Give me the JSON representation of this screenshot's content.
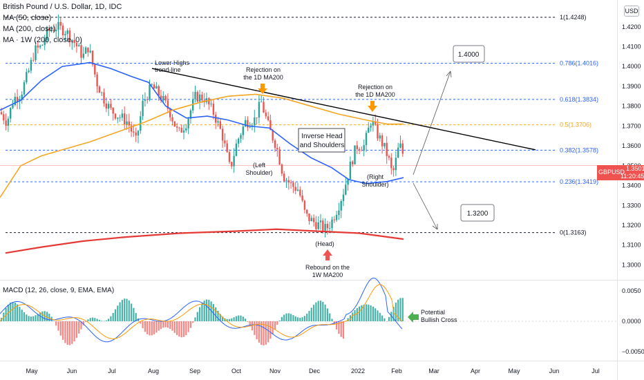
{
  "header": {
    "symbol_title": "British Pound / U.S. Dollar, 1D, IDC",
    "ma50_label": "MA (50, close)",
    "ma200_label": "MA (200, close)",
    "ma1w_label": "MA · 1W (200, close, 0)"
  },
  "currency_badge": "USD",
  "price_tag": {
    "symbol": "GBPUSD",
    "price": "1.3501",
    "countdown": "11:20:45"
  },
  "macd_header": "MACD (12, 26, close, 9, EMA, EMA)",
  "colors": {
    "up": "#26a69a",
    "down": "#ef5350",
    "ma50": "#2962ff",
    "ma200": "#f5a623",
    "ma1w": "#e53935",
    "fib": "#2962ff",
    "macd": "#2962ff",
    "signal": "#ff9800",
    "arrow_orange": "#ff9800",
    "arrow_red": "#ef5350",
    "arrow_green": "#4caf50"
  },
  "chart_data": [
    {
      "type": "candlestick",
      "title": "British Pound / U.S. Dollar, 1D, IDC",
      "ylim": [
        1.2925,
        1.4335
      ],
      "y_ticks": [
        "1.4200",
        "1.4100",
        "1.4000",
        "1.3900",
        "1.3800",
        "1.3700",
        "1.3600",
        "1.3500",
        "1.3400",
        "1.3300",
        "1.3200",
        "1.3100",
        "1.3000"
      ],
      "x_ticks": [
        "May",
        "Jun",
        "Jul",
        "Aug",
        "Sep",
        "Oct",
        "Nov",
        "Dec",
        "2022",
        "Feb",
        "Mar",
        "Apr",
        "May",
        "Jun",
        "Jul"
      ],
      "ohlc_monthly_approx": [
        {
          "month": "May",
          "open": 1.383,
          "high": 1.424,
          "low": 1.38,
          "close": 1.416
        },
        {
          "month": "Jun",
          "open": 1.416,
          "high": 1.425,
          "low": 1.378,
          "close": 1.383
        },
        {
          "month": "Jul",
          "open": 1.383,
          "high": 1.398,
          "low": 1.357,
          "close": 1.39
        },
        {
          "month": "Aug",
          "open": 1.39,
          "high": 1.395,
          "low": 1.361,
          "close": 1.376
        },
        {
          "month": "Sep",
          "open": 1.376,
          "high": 1.391,
          "low": 1.341,
          "close": 1.347
        },
        {
          "month": "Oct",
          "open": 1.347,
          "high": 1.383,
          "low": 1.345,
          "close": 1.368
        },
        {
          "month": "Nov",
          "open": 1.368,
          "high": 1.37,
          "low": 1.317,
          "close": 1.33
        },
        {
          "month": "Dec",
          "open": 1.33,
          "high": 1.355,
          "low": 1.316,
          "close": 1.353
        },
        {
          "month": "Jan",
          "open": 1.353,
          "high": 1.375,
          "low": 1.336,
          "close": 1.346
        },
        {
          "month": "Feb",
          "open": 1.346,
          "high": 1.363,
          "low": 1.343,
          "close": 1.35
        }
      ],
      "series": [
        {
          "name": "MA (50, close)",
          "color": "#2962ff"
        },
        {
          "name": "MA (200, close)",
          "color": "#f5a623"
        },
        {
          "name": "MA · 1W (200, close, 0)",
          "color": "#e53935"
        }
      ],
      "fib_levels": [
        {
          "label": "1(1.4248)",
          "value": 1.4248
        },
        {
          "label": "0.786(1.4016)",
          "value": 1.4016
        },
        {
          "label": "0.618(1.3834)",
          "value": 1.3834
        },
        {
          "label": "0.5(1.3706)",
          "value": 1.3706
        },
        {
          "label": "0.382(1.3578)",
          "value": 1.3578
        },
        {
          "label": "0.236(1.3419)",
          "value": 1.3419
        },
        {
          "label": "0(1.3163)",
          "value": 1.3163
        }
      ],
      "last_price": 1.3501,
      "annotations": {
        "lower_highs": "Lower Highs\ntrend-line",
        "rejection_1": "Rejection on\nthe 1D MA200",
        "rejection_2": "Rejection on\nthe 1D MA200",
        "inverse_hs": "Inverse Head\nand Shoulders",
        "left_shoulder": "(Left\nShoulder)",
        "right_shoulder": "(Right\nShoulder)",
        "head": "(Head)",
        "rebound": "Rebound on the\n1W MA200",
        "target_up": "1.4000",
        "target_down": "1.3200"
      }
    },
    {
      "type": "macd",
      "title": "MACD (12, 26, close, 9, EMA, EMA)",
      "ylim": [
        -0.0065,
        0.0065
      ],
      "y_ticks": [
        "0.0050",
        "0.0000",
        "−0.0050"
      ],
      "series": [
        {
          "name": "MACD",
          "color": "#2962ff"
        },
        {
          "name": "Signal",
          "color": "#ff9800"
        }
      ],
      "annotation": "Potential\nBullish Cross"
    }
  ]
}
